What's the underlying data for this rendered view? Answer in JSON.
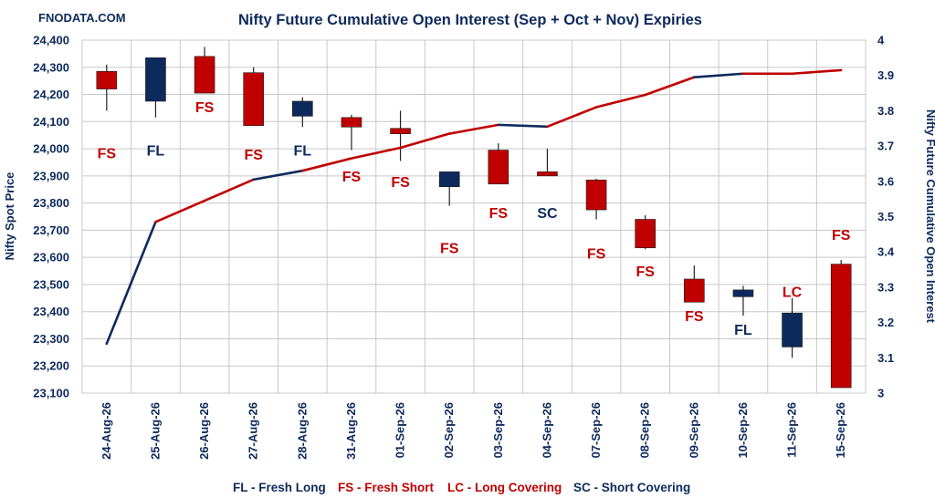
{
  "brand": "FNODATA.COM",
  "chart_data": {
    "type": "candlestick+line",
    "title": "Nifty Future Cumulative Open Interest (Sep + Oct + Nov) Expiries",
    "ylabel_left": "Nifty Spot Price",
    "ylabel_right": "Nifty Future Cumulative Open Interest",
    "ylim_left": [
      23100,
      24400
    ],
    "yticks_left": [
      "23,100",
      "23,200",
      "23,300",
      "23,400",
      "23,500",
      "23,600",
      "23,700",
      "23,800",
      "23,900",
      "24,000",
      "24,100",
      "24,200",
      "24,300",
      "24,400"
    ],
    "ylim_right": [
      3,
      4
    ],
    "yticks_right": [
      "3",
      "3.1",
      "3.2",
      "3.3",
      "3.4",
      "3.5",
      "3.6",
      "3.7",
      "3.8",
      "3.9",
      "4"
    ],
    "grid": true,
    "categories": [
      "24-Aug-26",
      "25-Aug-26",
      "26-Aug-26",
      "27-Aug-26",
      "28-Aug-26",
      "31-Aug-26",
      "01-Sep-26",
      "02-Sep-26",
      "03-Sep-26",
      "04-Sep-26",
      "07-Sep-26",
      "08-Sep-26",
      "09-Sep-26",
      "10-Sep-26",
      "11-Sep-26",
      "15-Sep-26"
    ],
    "candles": [
      {
        "open": 24285,
        "close": 24220,
        "high": 24310,
        "low": 24140
      },
      {
        "open": 24175,
        "close": 24335,
        "high": 24335,
        "low": 24115
      },
      {
        "open": 24340,
        "close": 24205,
        "high": 24375,
        "low": 24205
      },
      {
        "open": 24280,
        "close": 24085,
        "high": 24300,
        "low": 24085
      },
      {
        "open": 24120,
        "close": 24175,
        "high": 24190,
        "low": 24080
      },
      {
        "open": 24115,
        "close": 24080,
        "high": 24125,
        "low": 23995
      },
      {
        "open": 24075,
        "close": 24055,
        "high": 24140,
        "low": 23955
      },
      {
        "open": 23860,
        "close": 23915,
        "high": 23915,
        "low": 23790
      },
      {
        "open": 23995,
        "close": 23870,
        "high": 24020,
        "low": 23870
      },
      {
        "open": 23915,
        "close": 23900,
        "high": 24000,
        "low": 23900
      },
      {
        "open": 23885,
        "close": 23775,
        "high": 23890,
        "low": 23740
      },
      {
        "open": 23740,
        "close": 23635,
        "high": 23755,
        "low": 23630
      },
      {
        "open": 23520,
        "close": 23435,
        "high": 23570,
        "low": 23435
      },
      {
        "open": 23455,
        "close": 23480,
        "high": 23495,
        "low": 23385
      },
      {
        "open": 23270,
        "close": 23395,
        "high": 23450,
        "low": 23230
      },
      {
        "open": 23575,
        "close": 23120,
        "high": 23590,
        "low": 23120
      }
    ],
    "open_interest": [
      3.14,
      3.485,
      3.545,
      3.605,
      3.63,
      3.665,
      3.695,
      3.735,
      3.76,
      3.755,
      3.81,
      3.845,
      3.895,
      3.905,
      3.905,
      3.915
    ],
    "signals": [
      "FS",
      "FL",
      "FS",
      "FS",
      "FL",
      "FS",
      "FS",
      "FS",
      "FS",
      "SC",
      "FS",
      "FS",
      "FS",
      "FL",
      "LC",
      "FS"
    ],
    "signal_y": [
      23985,
      23995,
      24155,
      23980,
      23995,
      23900,
      23880,
      23635,
      23765,
      23765,
      23615,
      23550,
      23385,
      23335,
      23475,
      23685
    ],
    "legend": [
      {
        "code": "FL",
        "text": "FL - Fresh Long",
        "color": "#0d2a5c"
      },
      {
        "code": "FS",
        "text": "FS - Fresh Short",
        "color": "#c00000"
      },
      {
        "code": "LC",
        "text": "LC - Long Covering",
        "color": "#c00000"
      },
      {
        "code": "SC",
        "text": "SC - Short Covering",
        "color": "#0d2a5c"
      }
    ],
    "colors": {
      "bull": "#0d2a5c",
      "bear": "#c00000",
      "text": "#0d2a5c"
    }
  }
}
